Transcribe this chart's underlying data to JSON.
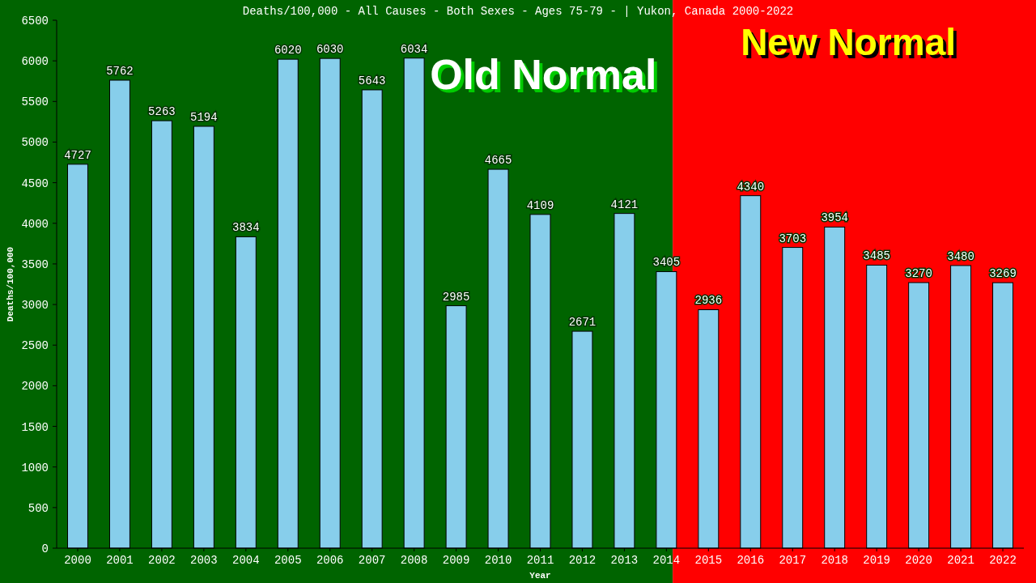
{
  "chart_data": {
    "type": "bar",
    "title": "Deaths/100,000 - All Causes - Both Sexes - Ages 75-79 -  | Yukon, Canada 2000-2022",
    "xlabel": "Year",
    "ylabel": "Deaths/100,000",
    "x": [
      2000,
      2001,
      2002,
      2003,
      2004,
      2005,
      2006,
      2007,
      2008,
      2009,
      2010,
      2011,
      2012,
      2013,
      2014,
      2015,
      2016,
      2017,
      2018,
      2019,
      2020,
      2021,
      2022
    ],
    "values": [
      4727,
      5762,
      5263,
      5194,
      3834,
      6020,
      6030,
      5643,
      6034,
      2985,
      4665,
      4109,
      2671,
      4121,
      3405,
      2936,
      4340,
      3703,
      3954,
      3485,
      3270,
      3480,
      3269
    ],
    "color": "#87ceeb",
    "data_labels": true,
    "xlim": [
      1999.5,
      2022.5
    ],
    "xticks": [
      2000,
      2001,
      2002,
      2003,
      2004,
      2005,
      2006,
      2007,
      2008,
      2009,
      2010,
      2011,
      2012,
      2013,
      2014,
      2015,
      2016,
      2017,
      2018,
      2019,
      2020,
      2021,
      2022
    ],
    "ylim": [
      0,
      6500
    ],
    "yticks": [
      0,
      500,
      1000,
      1500,
      2000,
      2500,
      3000,
      3500,
      4000,
      4500,
      5000,
      5500,
      6000,
      6500
    ],
    "bands": [
      {
        "axis": "x",
        "from": 1999.5,
        "to": 2014.15,
        "label": "Old Normal",
        "color": "#006400"
      },
      {
        "axis": "x",
        "from": 2014.15,
        "to": 2022.5,
        "label": "New Normal",
        "color": "#ff0000"
      }
    ],
    "grid": false
  }
}
